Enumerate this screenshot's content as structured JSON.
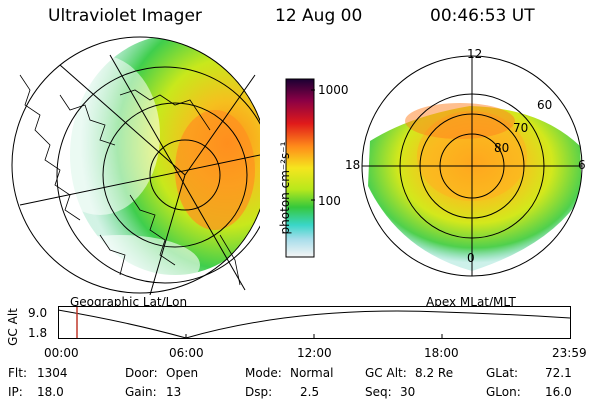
{
  "header": {
    "instrument": "Ultraviolet Imager",
    "date": "12 Aug 00",
    "time": "00:46:53 UT"
  },
  "colorbar": {
    "unit": "photon cm⁻²s⁻¹",
    "ticks": [
      "1000",
      "100"
    ]
  },
  "panels": {
    "left_label": "Geographic Lat/Lon",
    "right_label": "Apex MLat/MLT",
    "mlt_labels": {
      "top": "12",
      "left": "18",
      "right": "6",
      "bottom": "0"
    },
    "mlat_labels": [
      "60",
      "70",
      "80"
    ]
  },
  "altitude_plot": {
    "label": "GC Alt",
    "y_ticks": [
      "9.0",
      "1.8"
    ],
    "x_ticks": [
      "00:00",
      "06:00",
      "12:00",
      "18:00",
      "23:59"
    ]
  },
  "info": {
    "flt_label": "Flt:",
    "flt": "1304",
    "ip_label": "IP:",
    "ip": "18.0",
    "door_label": "Door:",
    "door": "Open",
    "gain_label": "Gain:",
    "gain": "13",
    "mode_label": "Mode:",
    "mode": "Normal",
    "dsp_label": "Dsp:",
    "dsp": "2.5",
    "gcalt_label": "GC Alt:",
    "gcalt": "8.2 Re",
    "seq_label": "Seq:",
    "seq": "30",
    "glat_label": "GLat:",
    "glat": "72.1",
    "glon_label": "GLon:",
    "glon": "16.0"
  }
}
